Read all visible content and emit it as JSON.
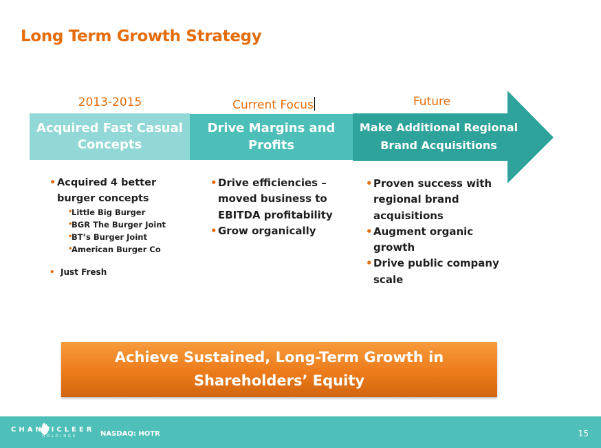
{
  "slide": {
    "title": "Long Term Growth Strategy",
    "page_number": "15"
  },
  "phases": [
    {
      "label": "2013-2015",
      "stage": "Acquired Fast Casual Concepts",
      "bullets": [
        {
          "text": "Acquired 4 better burger concepts",
          "sub": [
            "Little Big Burger",
            "BGR The Burger Joint",
            "BT’s Burger Joint",
            "American Burger Co"
          ]
        },
        {
          "text": "Just Fresh"
        }
      ]
    },
    {
      "label": "Current Focus",
      "stage": "Drive Margins and Profits",
      "bullets": [
        {
          "text": "Drive efficiencies – moved business to EBITDA profitability"
        },
        {
          "text": "Grow organically"
        }
      ]
    },
    {
      "label": "Future",
      "stage": "Make Additional Regional Brand Acquisitions",
      "bullets": [
        {
          "text": "Proven success with regional brand acquisitions"
        },
        {
          "text": "Augment organic growth"
        },
        {
          "text": "Drive public company scale"
        }
      ]
    }
  ],
  "banner": {
    "line1": "Achieve Sustained, Long-Term Growth in",
    "line2": "Shareholders’ Equity"
  },
  "footer": {
    "logo_main": "CHANTICLEER",
    "logo_sub": "HOLDINGS",
    "ticker": "NASDAQ: HOTR"
  },
  "colors": {
    "accent": "#e46c0a",
    "stage1": "#92d8d6",
    "stage2": "#4cbfb8",
    "stage3": "#2ea39b",
    "footer": "#4fbfb9"
  }
}
